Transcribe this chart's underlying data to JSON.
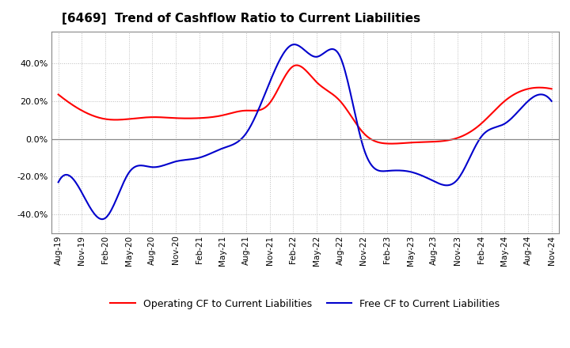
{
  "title": "[6469]  Trend of Cashflow Ratio to Current Liabilities",
  "x_labels": [
    "Aug-19",
    "Nov-19",
    "Feb-20",
    "May-20",
    "Aug-20",
    "Nov-20",
    "Feb-21",
    "May-21",
    "Aug-21",
    "Nov-21",
    "Feb-22",
    "May-22",
    "Aug-22",
    "Nov-22",
    "Feb-23",
    "May-23",
    "Aug-23",
    "Nov-23",
    "Feb-24",
    "May-24",
    "Aug-24",
    "Nov-24"
  ],
  "operating_cf": [
    23.5,
    15.0,
    10.5,
    10.5,
    11.5,
    11.0,
    11.0,
    12.5,
    15.0,
    19.0,
    38.5,
    30.0,
    20.0,
    3.0,
    -2.5,
    -2.0,
    -1.5,
    0.5,
    8.0,
    20.0,
    26.5,
    26.5
  ],
  "free_cf": [
    -23.0,
    -28.5,
    -42.0,
    -18.0,
    -15.0,
    -12.0,
    -10.0,
    -5.0,
    3.0,
    30.0,
    50.0,
    43.5,
    43.5,
    -5.0,
    -17.0,
    -17.5,
    -22.5,
    -21.5,
    1.0,
    8.0,
    20.0,
    20.0
  ],
  "ylim": [
    -50,
    57
  ],
  "yticks": [
    -40.0,
    -20.0,
    0.0,
    20.0,
    40.0
  ],
  "operating_color": "#ff0000",
  "free_color": "#0000cc",
  "background_color": "#ffffff",
  "grid_color": "#aaaaaa",
  "title_fontsize": 11,
  "legend_labels": [
    "Operating CF to Current Liabilities",
    "Free CF to Current Liabilities"
  ]
}
